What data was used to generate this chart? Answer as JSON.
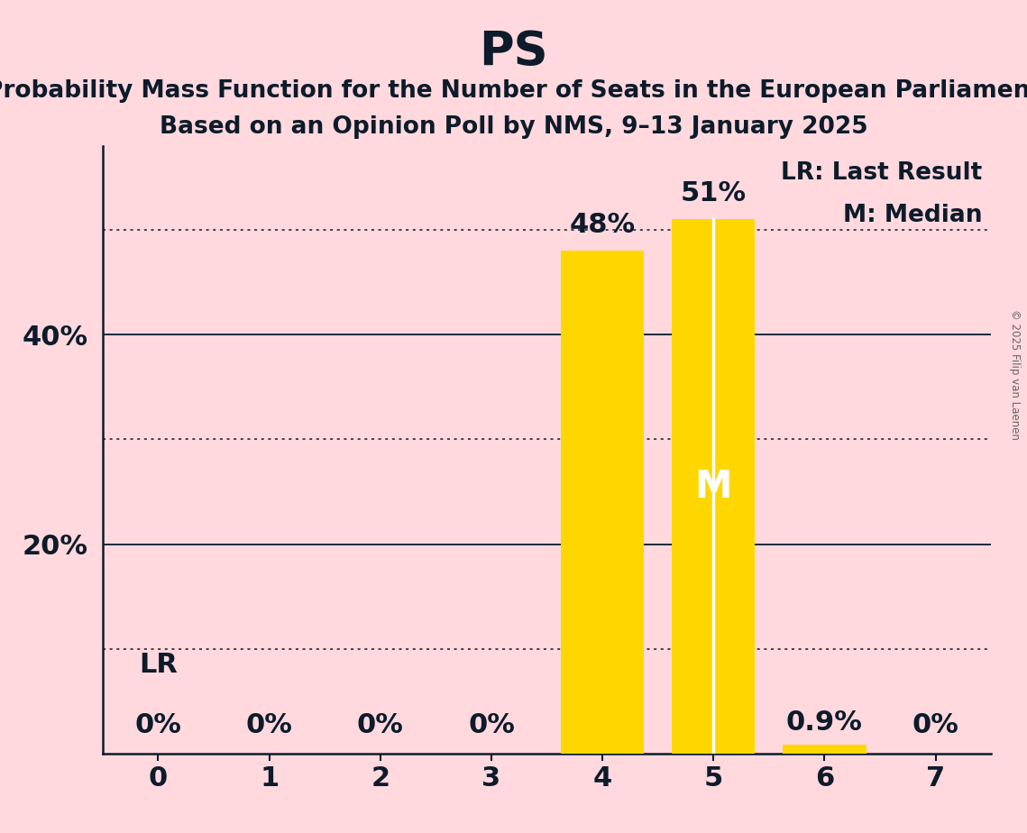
{
  "title": "PS",
  "subtitle1": "Probability Mass Function for the Number of Seats in the European Parliament",
  "subtitle2": "Based on an Opinion Poll by NMS, 9–13 January 2025",
  "copyright": "© 2025 Filip van Laenen",
  "categories": [
    0,
    1,
    2,
    3,
    4,
    5,
    6,
    7
  ],
  "values": [
    0.0,
    0.0,
    0.0,
    0.0,
    48.0,
    51.0,
    0.9,
    0.0
  ],
  "bar_color": "#FFD700",
  "background_color": "#FFD9DE",
  "text_color": "#0d1b2a",
  "bar_labels": [
    "0%",
    "0%",
    "0%",
    "0%",
    "48%",
    "51%",
    "0.9%",
    "0%"
  ],
  "lr_seat": 0,
  "lr_label": "LR",
  "median_seat": 5,
  "median_label": "M",
  "legend_lr": "LR: Last Result",
  "legend_m": "M: Median",
  "ylim": [
    0,
    58
  ],
  "solid_yticks": [
    20,
    40
  ],
  "dotted_yticks": [
    10,
    30,
    50
  ],
  "title_fontsize": 38,
  "subtitle_fontsize": 19,
  "tick_fontsize": 22,
  "annotation_fontsize": 22,
  "median_label_fontsize": 30,
  "legend_fontsize": 19
}
